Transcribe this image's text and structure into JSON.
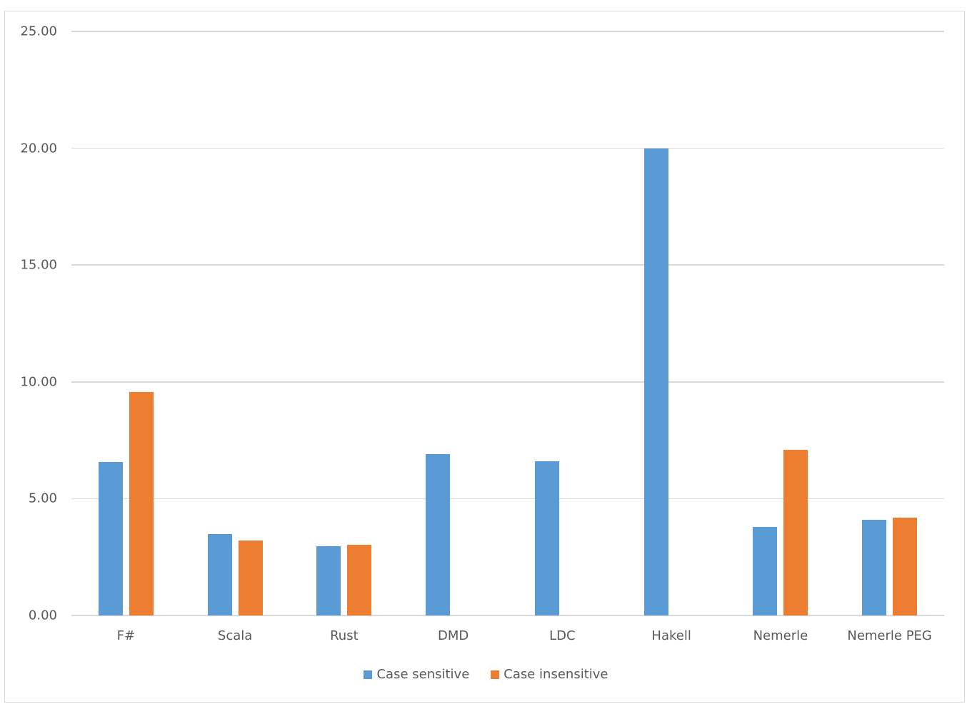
{
  "chart_data": {
    "type": "bar",
    "title": "",
    "xlabel": "",
    "ylabel": "",
    "ylim": [
      0,
      25
    ],
    "yticks": [
      "0.00",
      "5.00",
      "10.00",
      "15.00",
      "20.00",
      "25.00"
    ],
    "grid": true,
    "legend_position": "bottom",
    "categories": [
      "F#",
      "Scala",
      "Rust",
      "DMD",
      "LDC",
      "Hakell",
      "Nemerle",
      "Nemerle PEG"
    ],
    "series": [
      {
        "name": "Case sensitive",
        "color": "#5b9bd5",
        "values": [
          6.57,
          3.48,
          2.96,
          6.91,
          6.6,
          20.0,
          3.79,
          4.1
        ]
      },
      {
        "name": "Case insensitive",
        "color": "#ed7d31",
        "values": [
          9.57,
          3.21,
          3.03,
          null,
          null,
          null,
          7.09,
          4.19
        ]
      }
    ]
  },
  "legend": {
    "items": [
      {
        "label": "Case sensitive",
        "color": "#5b9bd5"
      },
      {
        "label": "Case insensitive",
        "color": "#ed7d31"
      }
    ]
  }
}
